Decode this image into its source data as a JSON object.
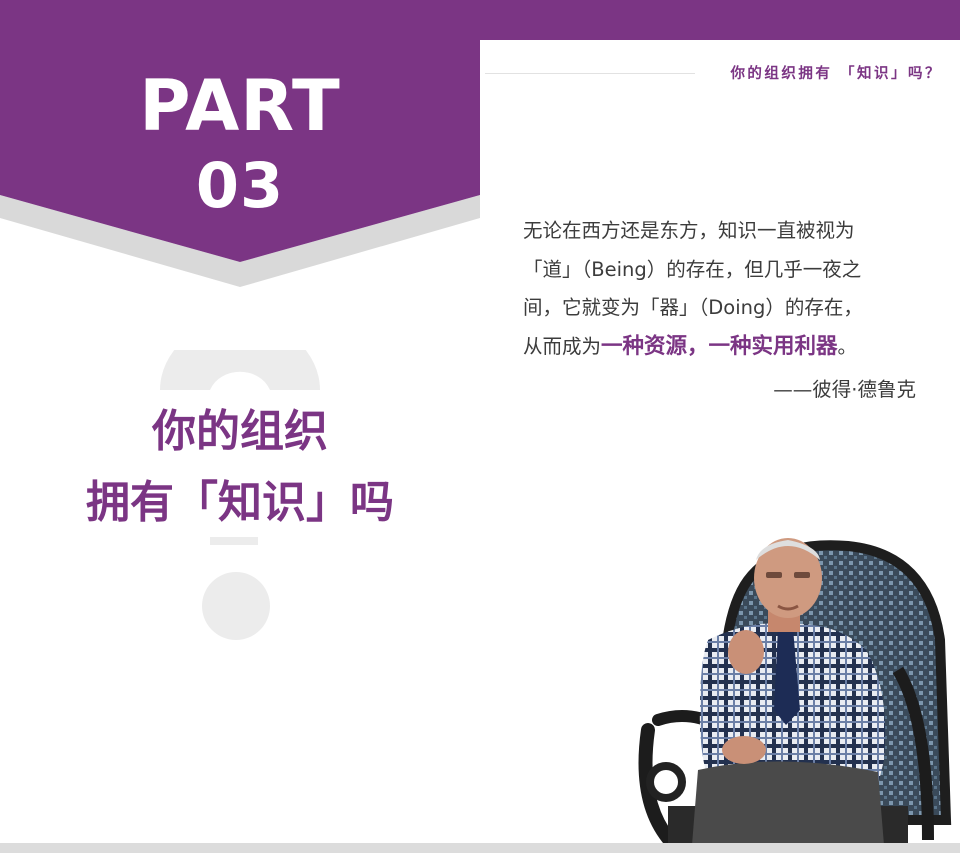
{
  "header": {
    "title": "你的组织拥有 「知识」吗？"
  },
  "part": {
    "word": "PART",
    "number": "03"
  },
  "title": {
    "line1": "你的组织",
    "line2": "拥有「知识」吗"
  },
  "quote": {
    "line1": "无论在西方还是东方，知识一直被视为",
    "line2": "「道」（Being）的存在，但几乎一夜之",
    "line3": "间，它就变为「器」（Doing）的存在，",
    "line4_prefix": "从而成为",
    "line4_highlight": "一种资源，一种实用利器",
    "line4_suffix": "。",
    "attribution": "——彼得·德鲁克"
  },
  "colors": {
    "brand_purple": "#7b3584",
    "banner_shadow": "#d9d9d9",
    "decor_gray": "#ececec"
  },
  "icons": {
    "decor": "question-mark-icon",
    "photo": "portrait-photo"
  }
}
